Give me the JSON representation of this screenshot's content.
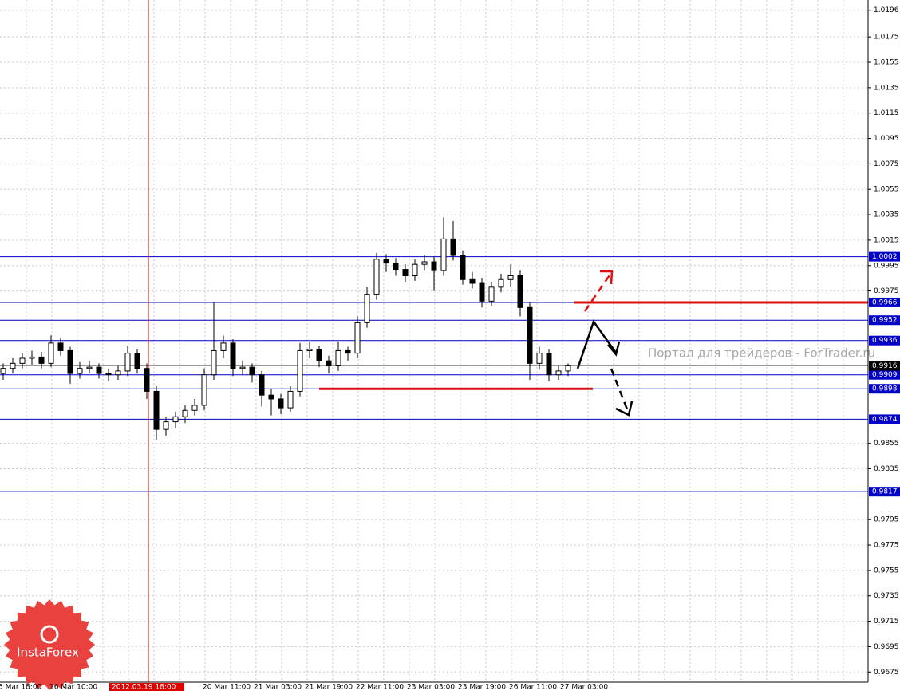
{
  "chart_data": {
    "type": "candlestick",
    "open": [
      0.991,
      0.9914,
      0.9918,
      0.9922,
      0.9923,
      0.9918,
      0.9934,
      0.9928,
      0.991,
      0.9914,
      0.9915,
      0.991,
      0.9909,
      0.9912,
      0.9926,
      0.9914,
      0.9896,
      0.9866,
      0.9872,
      0.9876,
      0.9881,
      0.9885,
      0.9909,
      0.9928,
      0.9934,
      0.9914,
      0.9915,
      0.9909,
      0.9893,
      0.989,
      0.9883,
      0.9896,
      0.9928,
      0.9929,
      0.992,
      0.9916,
      0.9928,
      0.9926,
      0.995,
      0.9972,
      1.0,
      0.9997,
      0.9992,
      0.9987,
      0.9996,
      0.9998,
      0.9991,
      1.0016,
      1.0003,
      0.9984,
      0.9981,
      0.9967,
      0.9978,
      0.9984,
      0.9987,
      0.9962,
      0.9918,
      0.9926,
      0.9909,
      0.9912
    ],
    "high": [
      0.9918,
      0.9922,
      0.9926,
      0.9928,
      0.9927,
      0.994,
      0.9938,
      0.9931,
      0.9919,
      0.992,
      0.9918,
      0.9914,
      0.9916,
      0.9932,
      0.9929,
      0.9918,
      0.99,
      0.9876,
      0.988,
      0.9885,
      0.989,
      0.9914,
      0.9966,
      0.994,
      0.9937,
      0.992,
      0.9918,
      0.9912,
      0.9898,
      0.9894,
      0.99,
      0.9934,
      0.9935,
      0.9932,
      0.9924,
      0.9935,
      0.9931,
      0.9955,
      0.9978,
      1.0005,
      1.0004,
      1.0001,
      0.9996,
      1.0,
      1.0003,
      1.0002,
      1.0033,
      1.003,
      1.0007,
      0.999,
      0.9985,
      0.9982,
      0.9988,
      0.9996,
      0.9991,
      0.9966,
      0.9931,
      0.9929,
      0.9916,
      0.9918
    ],
    "low": [
      0.9905,
      0.991,
      0.9914,
      0.9917,
      0.9914,
      0.9915,
      0.9924,
      0.9902,
      0.9906,
      0.991,
      0.9906,
      0.9904,
      0.9905,
      0.9908,
      0.991,
      0.989,
      0.9858,
      0.9861,
      0.9867,
      0.9871,
      0.9877,
      0.9881,
      0.9905,
      0.9922,
      0.9908,
      0.9909,
      0.9903,
      0.9884,
      0.9877,
      0.9878,
      0.988,
      0.9892,
      0.9922,
      0.9915,
      0.991,
      0.9912,
      0.992,
      0.9922,
      0.9946,
      0.9968,
      0.999,
      0.9987,
      0.9982,
      0.9983,
      0.9991,
      0.9975,
      0.9987,
      0.9999,
      0.998,
      0.9977,
      0.9962,
      0.9963,
      0.9974,
      0.9978,
      0.9955,
      0.9905,
      0.9913,
      0.9904,
      0.9905,
      0.9908
    ],
    "close": [
      0.9914,
      0.9918,
      0.9922,
      0.9923,
      0.9918,
      0.9934,
      0.9928,
      0.991,
      0.9914,
      0.9915,
      0.991,
      0.9909,
      0.9912,
      0.9926,
      0.9914,
      0.9896,
      0.9866,
      0.9872,
      0.9876,
      0.9881,
      0.9885,
      0.9909,
      0.9928,
      0.9934,
      0.9914,
      0.9915,
      0.9909,
      0.9893,
      0.989,
      0.9883,
      0.9896,
      0.9928,
      0.9929,
      0.992,
      0.9916,
      0.9928,
      0.9926,
      0.995,
      0.9972,
      1.0,
      0.9997,
      0.9992,
      0.9987,
      0.9996,
      0.9998,
      0.9991,
      1.0016,
      1.0003,
      0.9984,
      0.9981,
      0.9967,
      0.9978,
      0.9984,
      0.9987,
      0.9962,
      0.9918,
      0.9926,
      0.9909,
      0.9912,
      0.9916
    ],
    "ylim": [
      0.9667,
      1.0204
    ],
    "yticks": [
      1.0196,
      1.0175,
      1.0155,
      1.0135,
      1.0115,
      1.0095,
      1.0075,
      1.0055,
      1.0035,
      1.0015,
      0.9995,
      0.9975,
      0.9855,
      0.9835,
      0.9795,
      0.9775,
      0.9755,
      0.9735,
      0.9715,
      0.9695,
      0.9675
    ],
    "grid": true,
    "x_labels": [
      "5 Mar 18:00",
      "16 Mar 10:00",
      null,
      null,
      "20 Mar 11:00",
      "21 Mar 03:00",
      "21 Mar 19:00",
      "22 Mar 11:00",
      "23 Mar 03:00",
      "23 Mar 19:00",
      "26 Mar 11:00",
      "27 Mar 03:00"
    ],
    "cursor_label": "2012.03.19 18:00",
    "levels": [
      1.0002,
      0.9966,
      0.9952,
      0.9936,
      0.9909,
      0.9898,
      0.9874,
      0.9817
    ],
    "level_color": "#0000c8",
    "current_price": 0.9916,
    "red_levels": [
      0.9966,
      0.9898
    ],
    "red_color": "#e01010",
    "watermark": "Портал для трейдеров - ForTrader.ru",
    "logo": "InstaForex"
  }
}
